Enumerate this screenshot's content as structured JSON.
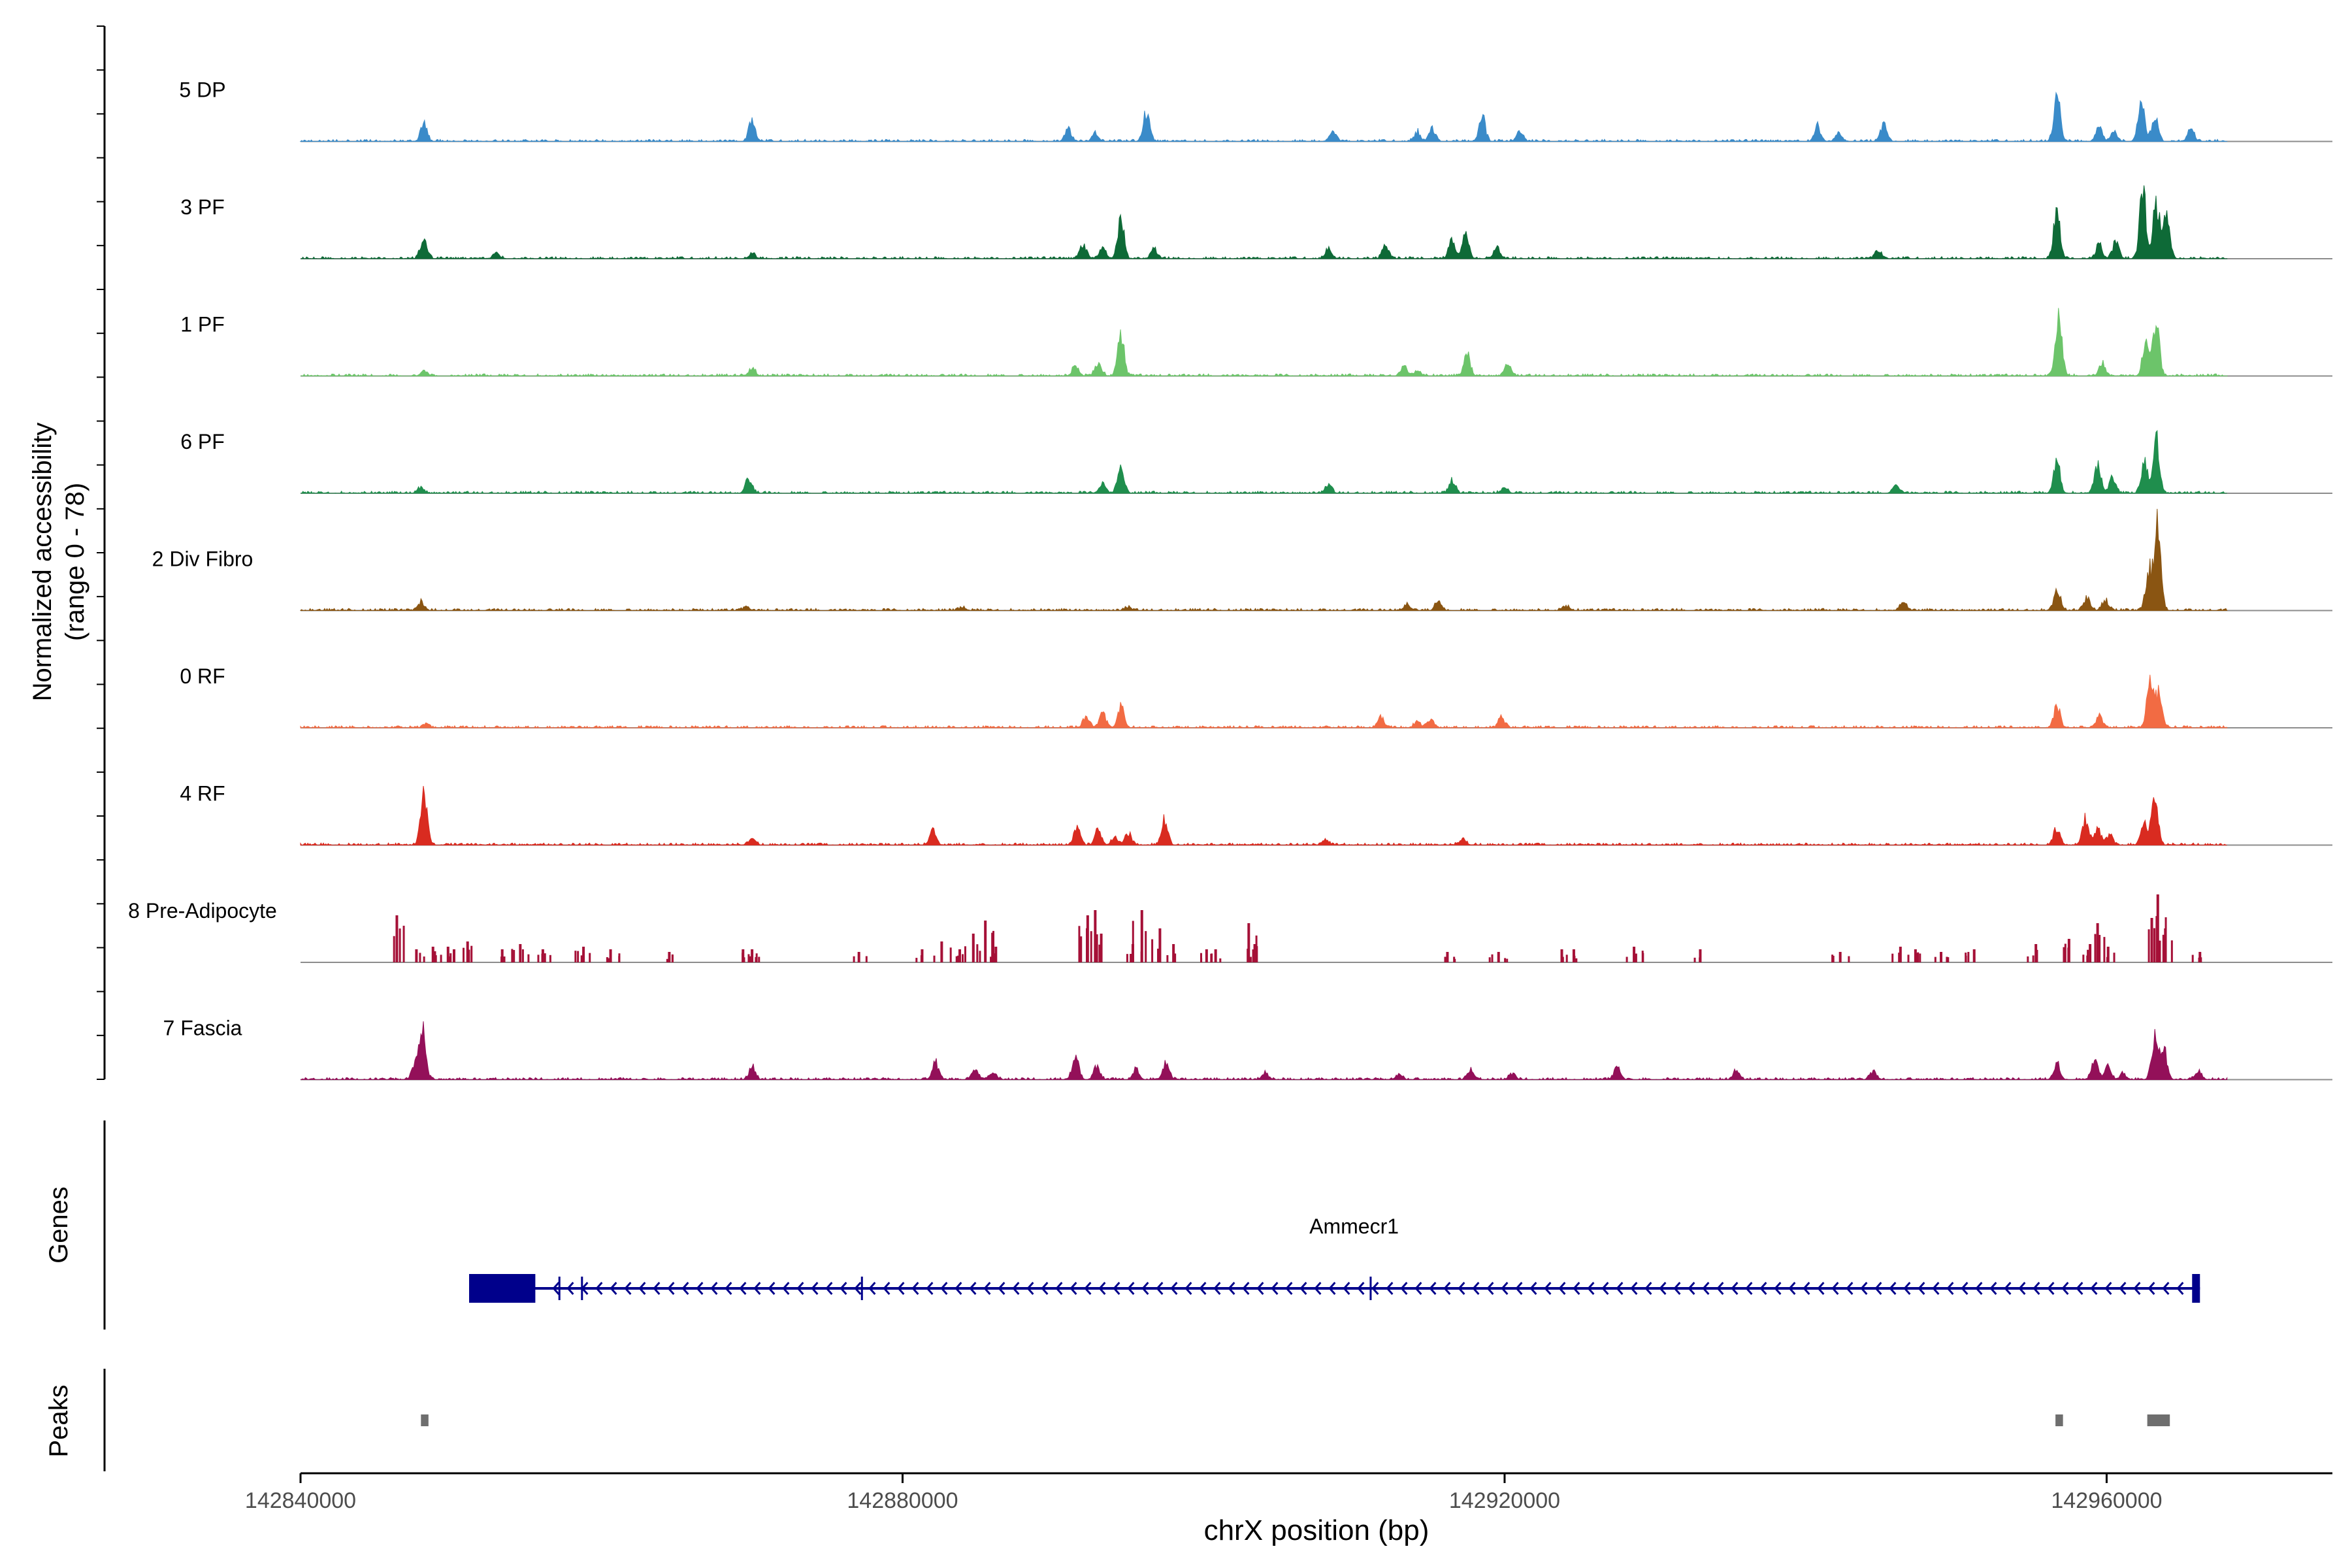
{
  "chart_data": {
    "type": "area",
    "title": "",
    "ylabel_line1": "Normalized accessibility",
    "ylabel_line2": "(range 0 - 78)",
    "xlabel": "chrX position (bp)",
    "genes_label": "Genes",
    "peaks_label": "Peaks",
    "gene_name": "Ammecr1",
    "xlim": [
      142840000,
      142975000
    ],
    "ylim": [
      0,
      78
    ],
    "x_ticks": [
      142840000,
      142880000,
      142920000,
      142960000
    ],
    "x_tick_labels": [
      "142840000",
      "142880000",
      "142920000",
      "142960000"
    ],
    "track_range": [
      142840000,
      142968000
    ],
    "gene_color": "#00008B",
    "peak_color": "#6E6E6E",
    "baseline_color": "#8C8C8C",
    "series": [
      {
        "name": "5 DP",
        "color": "#3A8BC9",
        "peaks": [
          [
            142848200,
            16
          ],
          [
            142870000,
            20
          ],
          [
            142891000,
            12
          ],
          [
            142892800,
            8
          ],
          [
            142896200,
            28
          ],
          [
            142908600,
            10
          ],
          [
            142914200,
            9
          ],
          [
            142915200,
            12
          ],
          [
            142918500,
            24
          ],
          [
            142921000,
            9
          ],
          [
            142940800,
            14
          ],
          [
            142942200,
            8
          ],
          [
            142945200,
            16
          ],
          [
            142956700,
            44
          ],
          [
            142959500,
            14
          ],
          [
            142960500,
            8
          ],
          [
            142962300,
            40
          ],
          [
            142963200,
            24
          ],
          [
            142965600,
            14
          ]
        ]
      },
      {
        "name": "3 PF",
        "color": "#0E6A37",
        "peaks": [
          [
            142848200,
            22
          ],
          [
            142853000,
            6
          ],
          [
            142870000,
            5
          ],
          [
            142892000,
            14
          ],
          [
            142893300,
            10
          ],
          [
            142894500,
            38
          ],
          [
            142896700,
            10
          ],
          [
            142908300,
            10
          ],
          [
            142912100,
            14
          ],
          [
            142916500,
            18
          ],
          [
            142917400,
            22
          ],
          [
            142919500,
            12
          ],
          [
            142944800,
            8
          ],
          [
            142956700,
            46
          ],
          [
            142959500,
            14
          ],
          [
            142960600,
            16
          ],
          [
            142962400,
            64
          ],
          [
            142963300,
            56
          ],
          [
            142964000,
            42
          ]
        ]
      },
      {
        "name": "1 PF",
        "color": "#6CC46A",
        "peaks": [
          [
            142848200,
            5
          ],
          [
            142870000,
            8
          ],
          [
            142891500,
            10
          ],
          [
            142893000,
            14
          ],
          [
            142894500,
            42
          ],
          [
            142913300,
            10
          ],
          [
            142914200,
            6
          ],
          [
            142917500,
            20
          ],
          [
            142920200,
            12
          ],
          [
            142956800,
            62
          ],
          [
            142959700,
            12
          ],
          [
            142962600,
            30
          ],
          [
            142963300,
            52
          ]
        ]
      },
      {
        "name": "6 PF",
        "color": "#1F8E4D",
        "peaks": [
          [
            142848000,
            6
          ],
          [
            142869800,
            14
          ],
          [
            142893300,
            10
          ],
          [
            142894500,
            26
          ],
          [
            142908300,
            8
          ],
          [
            142916500,
            12
          ],
          [
            142920000,
            6
          ],
          [
            142946000,
            8
          ],
          [
            142956700,
            30
          ],
          [
            142959400,
            28
          ],
          [
            142960400,
            14
          ],
          [
            142963300,
            54
          ],
          [
            142962500,
            30
          ]
        ]
      },
      {
        "name": "2 Div Fibro",
        "color": "#8A5512",
        "peaks": [
          [
            142848000,
            8
          ],
          [
            142869600,
            3
          ],
          [
            142884000,
            3
          ],
          [
            142895000,
            3
          ],
          [
            142913500,
            6
          ],
          [
            142915600,
            8
          ],
          [
            142924100,
            4
          ],
          [
            142946500,
            8
          ],
          [
            142956700,
            20
          ],
          [
            142958700,
            12
          ],
          [
            142959900,
            10
          ],
          [
            142963400,
            78
          ],
          [
            142962800,
            40
          ]
        ]
      },
      {
        "name": "0 RF",
        "color": "#F26B43",
        "peaks": [
          [
            142848300,
            4
          ],
          [
            142892200,
            12
          ],
          [
            142893300,
            14
          ],
          [
            142894500,
            20
          ],
          [
            142911800,
            10
          ],
          [
            142914200,
            6
          ],
          [
            142915100,
            8
          ],
          [
            142919800,
            10
          ],
          [
            142956700,
            22
          ],
          [
            142959500,
            12
          ],
          [
            142962900,
            50
          ],
          [
            142963500,
            36
          ]
        ]
      },
      {
        "name": "4 RF",
        "color": "#D92B20",
        "peaks": [
          [
            142848200,
            54
          ],
          [
            142870000,
            6
          ],
          [
            142882000,
            16
          ],
          [
            142891600,
            16
          ],
          [
            142893000,
            14
          ],
          [
            142894100,
            8
          ],
          [
            142895000,
            12
          ],
          [
            142897400,
            24
          ],
          [
            142908100,
            6
          ],
          [
            142917200,
            6
          ],
          [
            142956700,
            16
          ],
          [
            142958600,
            26
          ],
          [
            142959400,
            18
          ],
          [
            142960200,
            10
          ],
          [
            142963200,
            46
          ],
          [
            142962500,
            22
          ]
        ]
      },
      {
        "name": "8 Pre-Adipocyte",
        "color": "#A51037",
        "spikes": [
          [
            142846400,
            36
          ],
          [
            142847700,
            10
          ],
          [
            142848800,
            12
          ],
          [
            142849800,
            12
          ],
          [
            142850200,
            10
          ],
          [
            142851100,
            16
          ],
          [
            142853400,
            10
          ],
          [
            142854600,
            14
          ],
          [
            142856100,
            10
          ],
          [
            142858800,
            12
          ],
          [
            142860600,
            10
          ],
          [
            142864500,
            8
          ],
          [
            142869400,
            10
          ],
          [
            142870000,
            10
          ],
          [
            142877100,
            8
          ],
          [
            142881300,
            10
          ],
          [
            142882600,
            16
          ],
          [
            142883800,
            10
          ],
          [
            142884700,
            22
          ],
          [
            142885500,
            32
          ],
          [
            142886200,
            12
          ],
          [
            142892300,
            36
          ],
          [
            142892800,
            40
          ],
          [
            142893200,
            22
          ],
          [
            142895300,
            14
          ],
          [
            142895900,
            40
          ],
          [
            142897100,
            26
          ],
          [
            142898000,
            14
          ],
          [
            142900800,
            10
          ],
          [
            142903000,
            30
          ],
          [
            142903400,
            14
          ],
          [
            142900200,
            10
          ],
          [
            142916200,
            8
          ],
          [
            142919600,
            8
          ],
          [
            142923800,
            10
          ],
          [
            142924600,
            10
          ],
          [
            142928600,
            12
          ],
          [
            142933000,
            10
          ],
          [
            142942300,
            8
          ],
          [
            142946300,
            12
          ],
          [
            142947300,
            10
          ],
          [
            142949000,
            8
          ],
          [
            142951200,
            10
          ],
          [
            142955300,
            14
          ],
          [
            142957500,
            18
          ],
          [
            142958900,
            14
          ],
          [
            142959400,
            30
          ],
          [
            142960100,
            12
          ],
          [
            142963000,
            34
          ],
          [
            142963400,
            52
          ],
          [
            142963900,
            26
          ],
          [
            142966200,
            8
          ]
        ]
      },
      {
        "name": "7 Fascia",
        "color": "#931059",
        "peaks": [
          [
            142848100,
            50
          ],
          [
            142847600,
            14
          ],
          [
            142870000,
            12
          ],
          [
            142882200,
            16
          ],
          [
            142884800,
            10
          ],
          [
            142886000,
            8
          ],
          [
            142891500,
            24
          ],
          [
            142892900,
            12
          ],
          [
            142895500,
            10
          ],
          [
            142897500,
            16
          ],
          [
            142904100,
            6
          ],
          [
            142913000,
            6
          ],
          [
            142917700,
            10
          ],
          [
            142920500,
            6
          ],
          [
            142927500,
            12
          ],
          [
            142935400,
            8
          ],
          [
            142944500,
            8
          ],
          [
            142956700,
            14
          ],
          [
            142959200,
            16
          ],
          [
            142960100,
            12
          ],
          [
            142961100,
            6
          ],
          [
            142963200,
            42
          ],
          [
            142963800,
            28
          ],
          [
            142966100,
            8
          ]
        ]
      }
    ],
    "gene": {
      "start": 142851200,
      "end": 142966200,
      "thick_end": 142855600,
      "strand": "-",
      "introns_marks": [
        142857200,
        142858700,
        142877300,
        142911100
      ]
    },
    "peak_regions": [
      [
        142848000,
        142848500
      ],
      [
        142956600,
        142957100
      ],
      [
        142962700,
        142964200
      ]
    ]
  }
}
